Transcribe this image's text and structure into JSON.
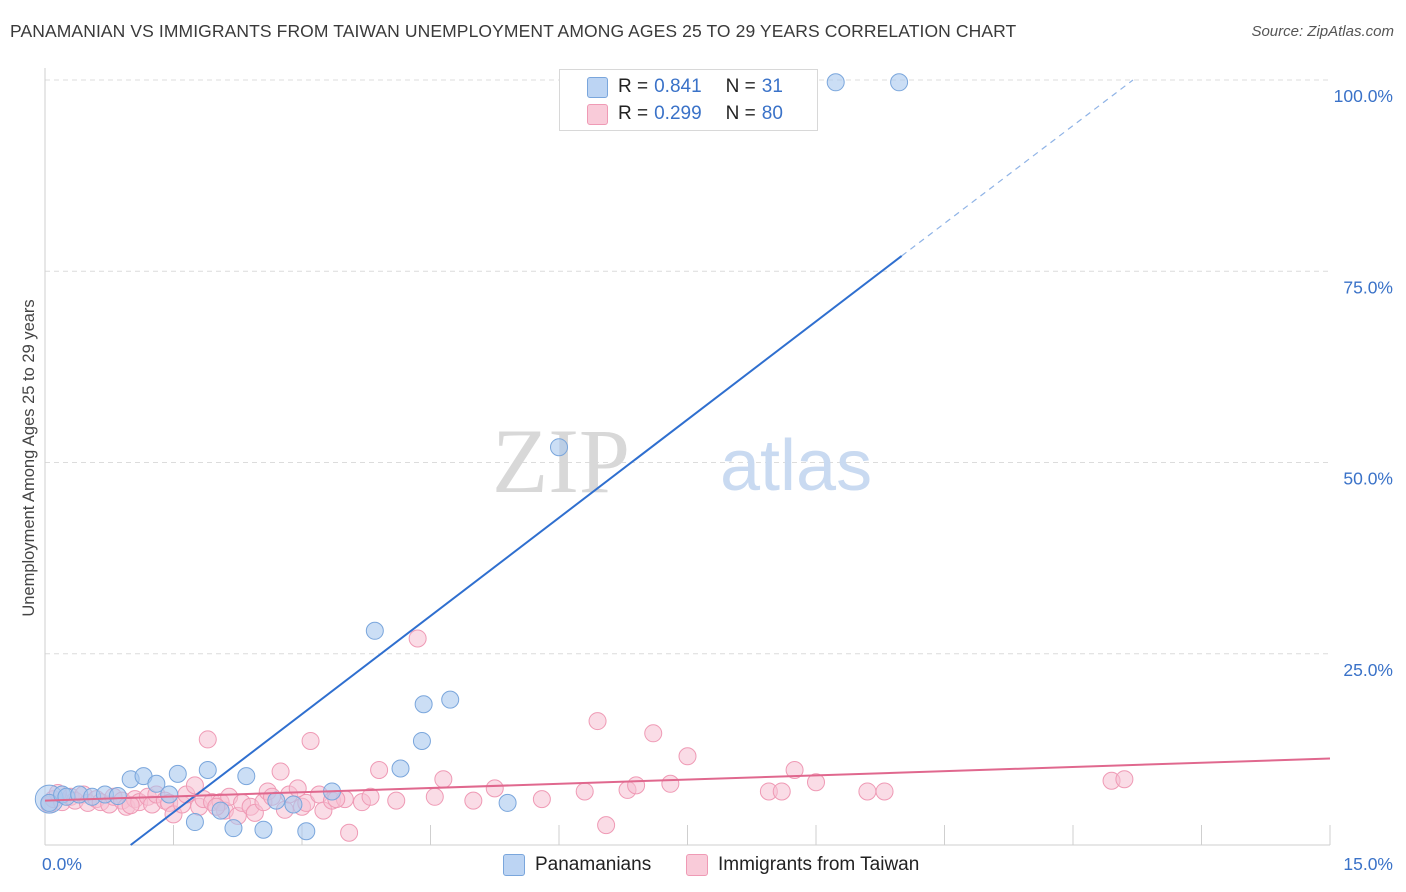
{
  "title": "PANAMANIAN VS IMMIGRANTS FROM TAIWAN UNEMPLOYMENT AMONG AGES 25 TO 29 YEARS CORRELATION CHART",
  "source": "Source: ZipAtlas.com",
  "watermark": {
    "zip": "ZIP",
    "atlas": "atlas"
  },
  "legend": {
    "r_label": "R =",
    "n_label": "N =",
    "rows": [
      {
        "r": "0.841",
        "n": "31"
      },
      {
        "r": "0.299",
        "n": "80"
      }
    ]
  },
  "bottom_legend": [
    "Panamanians",
    "Immigrants from Taiwan"
  ],
  "colors": {
    "blue_fill": "#a9c8ef",
    "blue_stroke": "#7aa6dc",
    "blue_line": "#2f6fcf",
    "pink_fill": "#f6bfd1",
    "pink_stroke": "#ef9ab5",
    "pink_line": "#e0688e",
    "axis_label": "#3a72c8",
    "grid": "#dcdcdc"
  },
  "chart_data": {
    "type": "scatter",
    "title": "PANAMANIAN VS IMMIGRANTS FROM TAIWAN UNEMPLOYMENT AMONG AGES 25 TO 29 YEARS CORRELATION CHART",
    "xlabel": "",
    "ylabel": "Unemployment Among Ages 25 to 29 years",
    "xlim": [
      0,
      15
    ],
    "ylim": [
      0,
      100
    ],
    "x_tick_labels": [
      "0.0%",
      "15.0%"
    ],
    "x_tick_values": [
      0,
      15
    ],
    "y_tick_labels": [
      "25.0%",
      "50.0%",
      "75.0%",
      "100.0%"
    ],
    "y_tick_values": [
      25,
      50,
      75,
      100
    ],
    "series": [
      {
        "name": "Panamanians",
        "r": 0.841,
        "n": 31,
        "trend": {
          "x0": 1.0,
          "y0": 0.0,
          "x1": 10.0,
          "y1": 77.0,
          "dash_to_x": 12.7,
          "dash_to_y": 100
        },
        "points": [
          [
            0.05,
            5.5
          ],
          [
            0.2,
            6.6
          ],
          [
            0.25,
            6.3
          ],
          [
            0.4,
            6.6
          ],
          [
            0.55,
            6.3
          ],
          [
            0.7,
            6.6
          ],
          [
            0.85,
            6.4
          ],
          [
            1.0,
            8.6
          ],
          [
            1.15,
            9.0
          ],
          [
            1.3,
            8.0
          ],
          [
            1.45,
            6.6
          ],
          [
            1.55,
            9.3
          ],
          [
            1.75,
            3.0
          ],
          [
            1.9,
            9.8
          ],
          [
            2.05,
            4.5
          ],
          [
            2.2,
            2.2
          ],
          [
            2.35,
            9.0
          ],
          [
            2.55,
            2.0
          ],
          [
            2.7,
            5.8
          ],
          [
            2.9,
            5.3
          ],
          [
            3.05,
            1.8
          ],
          [
            3.35,
            7.0
          ],
          [
            3.85,
            28.0
          ],
          [
            4.15,
            10.0
          ],
          [
            4.4,
            13.6
          ],
          [
            4.42,
            18.4
          ],
          [
            4.73,
            19.0
          ],
          [
            5.4,
            5.5
          ],
          [
            6.0,
            52.0
          ],
          [
            9.23,
            99.7
          ],
          [
            9.97,
            99.7
          ]
        ]
      },
      {
        "name": "Immigrants from Taiwan",
        "r": 0.299,
        "n": 80,
        "trend": {
          "x0": 0.0,
          "y0": 5.8,
          "x1": 15.0,
          "y1": 11.3
        },
        "points": [
          [
            0.05,
            5.3
          ],
          [
            0.1,
            6.0
          ],
          [
            0.2,
            5.6
          ],
          [
            0.3,
            6.3
          ],
          [
            0.35,
            5.8
          ],
          [
            0.45,
            6.6
          ],
          [
            0.5,
            5.5
          ],
          [
            0.6,
            6.0
          ],
          [
            0.65,
            5.6
          ],
          [
            0.75,
            5.3
          ],
          [
            0.8,
            6.3
          ],
          [
            0.9,
            5.8
          ],
          [
            0.95,
            5.0
          ],
          [
            1.05,
            6.0
          ],
          [
            1.1,
            5.6
          ],
          [
            1.2,
            6.3
          ],
          [
            1.25,
            5.3
          ],
          [
            1.3,
            6.6
          ],
          [
            1.4,
            5.8
          ],
          [
            1.45,
            5.5
          ],
          [
            1.5,
            4.0
          ],
          [
            1.6,
            5.3
          ],
          [
            1.65,
            6.6
          ],
          [
            1.75,
            7.8
          ],
          [
            1.8,
            5.0
          ],
          [
            1.85,
            6.0
          ],
          [
            1.9,
            13.8
          ],
          [
            1.95,
            5.6
          ],
          [
            2.05,
            5.6
          ],
          [
            2.1,
            4.5
          ],
          [
            2.15,
            6.3
          ],
          [
            2.25,
            3.8
          ],
          [
            2.3,
            5.5
          ],
          [
            2.4,
            5.0
          ],
          [
            2.45,
            4.2
          ],
          [
            2.55,
            5.6
          ],
          [
            2.6,
            7.0
          ],
          [
            2.65,
            6.3
          ],
          [
            2.75,
            9.6
          ],
          [
            2.8,
            4.6
          ],
          [
            2.85,
            6.6
          ],
          [
            2.95,
            7.4
          ],
          [
            3.0,
            5.0
          ],
          [
            3.05,
            5.5
          ],
          [
            3.1,
            13.6
          ],
          [
            3.2,
            6.6
          ],
          [
            3.25,
            4.5
          ],
          [
            3.35,
            5.8
          ],
          [
            3.5,
            6.0
          ],
          [
            3.55,
            1.6
          ],
          [
            3.7,
            5.6
          ],
          [
            3.8,
            6.3
          ],
          [
            3.9,
            9.8
          ],
          [
            4.1,
            5.8
          ],
          [
            4.35,
            27.0
          ],
          [
            4.55,
            6.3
          ],
          [
            4.65,
            8.6
          ],
          [
            5.0,
            5.8
          ],
          [
            5.25,
            7.4
          ],
          [
            5.8,
            6.0
          ],
          [
            6.3,
            7.0
          ],
          [
            6.45,
            16.2
          ],
          [
            6.55,
            2.6
          ],
          [
            6.8,
            7.2
          ],
          [
            6.9,
            7.8
          ],
          [
            7.1,
            14.6
          ],
          [
            7.3,
            8.0
          ],
          [
            7.5,
            11.6
          ],
          [
            8.45,
            7.0
          ],
          [
            8.6,
            7.0
          ],
          [
            8.75,
            9.8
          ],
          [
            9.0,
            8.2
          ],
          [
            9.6,
            7.0
          ],
          [
            9.8,
            7.0
          ],
          [
            12.45,
            8.4
          ],
          [
            12.6,
            8.6
          ],
          [
            0.15,
            6.8
          ],
          [
            1.0,
            5.2
          ],
          [
            2.0,
            5.0
          ],
          [
            3.4,
            6.0
          ]
        ]
      }
    ]
  }
}
